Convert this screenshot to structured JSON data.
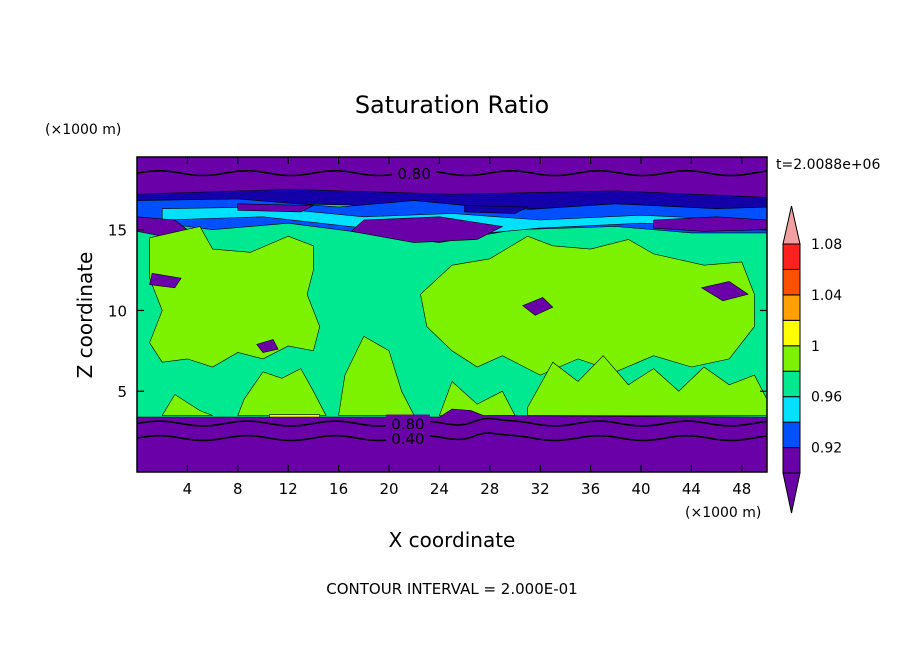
{
  "chart_data": {
    "type": "heatmap",
    "title": "Saturation Ratio",
    "xlabel": "X coordinate",
    "ylabel": "Z coordinate",
    "x_unit": "(×1000 m)",
    "y_unit": "(×1000 m)",
    "time_label": "t=2.0088e+06",
    "footer": "CONTOUR INTERVAL = 2.000E-01",
    "xlim": [
      0,
      50
    ],
    "ylim": [
      0,
      19.5
    ],
    "x_ticks": [
      4,
      8,
      12,
      16,
      20,
      24,
      28,
      32,
      36,
      40,
      44,
      48
    ],
    "y_ticks": [
      5,
      10,
      15
    ],
    "colorbar": {
      "levels": [
        0.92,
        0.94,
        0.96,
        0.98,
        1,
        1.02,
        1.04,
        1.06,
        1.08,
        1.1
      ],
      "labels": [
        "0.92",
        "0.96",
        "1",
        "1.04",
        "1.08"
      ],
      "colors": [
        "#6a00a8",
        "#1400a8",
        "#0050ff",
        "#00e0ff",
        "#00e890",
        "#7cf200",
        "#ffff00",
        "#ffa000",
        "#ff5000",
        "#ff2020",
        "#f0a0a0"
      ]
    },
    "contour_lines": [
      {
        "label": "0.80",
        "z": 18.5
      },
      {
        "label": "0.80",
        "z": 3.0
      },
      {
        "label": "0.40",
        "z": 2.1
      }
    ]
  }
}
